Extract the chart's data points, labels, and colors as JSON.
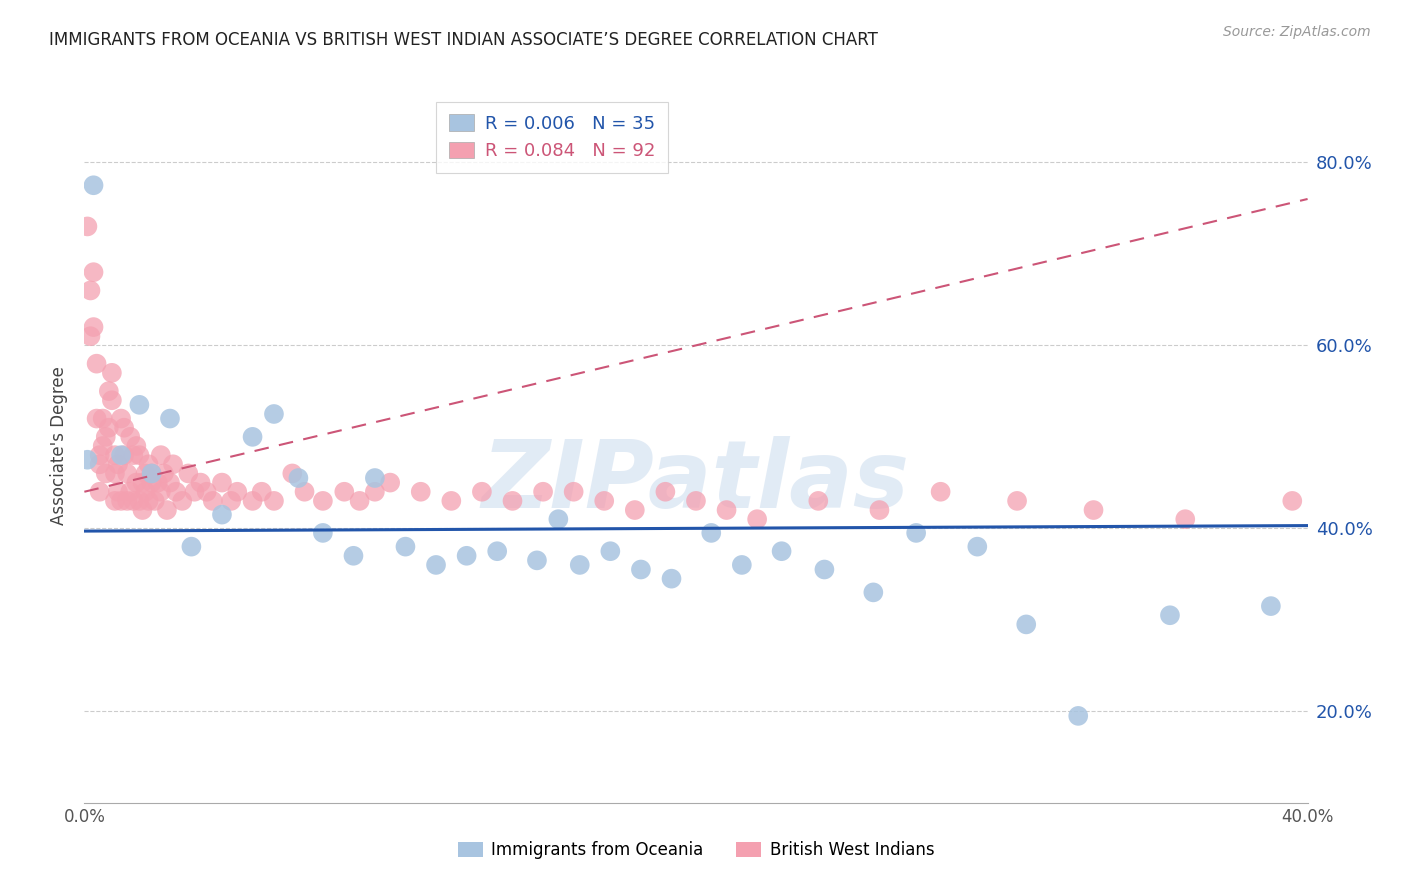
{
  "title": "IMMIGRANTS FROM OCEANIA VS BRITISH WEST INDIAN ASSOCIATE’S DEGREE CORRELATION CHART",
  "source": "Source: ZipAtlas.com",
  "ylabel": "Associate's Degree",
  "xlim": [
    0.0,
    0.4
  ],
  "ylim": [
    0.1,
    0.88
  ],
  "ytick_labels": [
    "20.0%",
    "40.0%",
    "60.0%",
    "80.0%"
  ],
  "ytick_vals": [
    0.2,
    0.4,
    0.6,
    0.8
  ],
  "xtick_labels": [
    "0.0%",
    "40.0%"
  ],
  "xtick_vals": [
    0.0,
    0.4
  ],
  "blue_color": "#a8c4e0",
  "blue_line_color": "#2255aa",
  "pink_color": "#f4a0b0",
  "pink_line_color": "#cc5577",
  "R_blue": 0.006,
  "N_blue": 35,
  "R_pink": 0.084,
  "N_pink": 92,
  "legend_label_blue": "Immigrants from Oceania",
  "legend_label_pink": "British West Indians",
  "watermark": "ZIPatlas",
  "blue_scatter_x": [
    0.001,
    0.003,
    0.012,
    0.018,
    0.022,
    0.028,
    0.035,
    0.045,
    0.055,
    0.062,
    0.07,
    0.078,
    0.088,
    0.095,
    0.105,
    0.115,
    0.125,
    0.135,
    0.148,
    0.155,
    0.162,
    0.172,
    0.182,
    0.192,
    0.205,
    0.215,
    0.228,
    0.242,
    0.258,
    0.272,
    0.292,
    0.308,
    0.325,
    0.355,
    0.388
  ],
  "blue_scatter_y": [
    0.475,
    0.775,
    0.48,
    0.535,
    0.46,
    0.52,
    0.38,
    0.415,
    0.5,
    0.525,
    0.455,
    0.395,
    0.37,
    0.455,
    0.38,
    0.36,
    0.37,
    0.375,
    0.365,
    0.41,
    0.36,
    0.375,
    0.355,
    0.345,
    0.395,
    0.36,
    0.375,
    0.355,
    0.33,
    0.395,
    0.38,
    0.295,
    0.195,
    0.305,
    0.315
  ],
  "pink_scatter_x": [
    0.001,
    0.002,
    0.002,
    0.003,
    0.003,
    0.004,
    0.004,
    0.005,
    0.005,
    0.005,
    0.006,
    0.006,
    0.007,
    0.007,
    0.008,
    0.008,
    0.009,
    0.009,
    0.01,
    0.01,
    0.01,
    0.011,
    0.011,
    0.012,
    0.012,
    0.013,
    0.013,
    0.014,
    0.014,
    0.015,
    0.015,
    0.016,
    0.016,
    0.017,
    0.017,
    0.018,
    0.018,
    0.019,
    0.019,
    0.02,
    0.02,
    0.021,
    0.021,
    0.022,
    0.022,
    0.023,
    0.024,
    0.025,
    0.025,
    0.026,
    0.027,
    0.028,
    0.029,
    0.03,
    0.032,
    0.034,
    0.036,
    0.038,
    0.04,
    0.042,
    0.045,
    0.048,
    0.05,
    0.055,
    0.058,
    0.062,
    0.068,
    0.072,
    0.078,
    0.085,
    0.09,
    0.095,
    0.1,
    0.11,
    0.12,
    0.13,
    0.14,
    0.15,
    0.16,
    0.17,
    0.18,
    0.19,
    0.2,
    0.21,
    0.22,
    0.24,
    0.26,
    0.28,
    0.305,
    0.33,
    0.36,
    0.395
  ],
  "pink_scatter_y": [
    0.73,
    0.66,
    0.61,
    0.68,
    0.62,
    0.58,
    0.52,
    0.48,
    0.44,
    0.47,
    0.49,
    0.52,
    0.46,
    0.5,
    0.55,
    0.51,
    0.57,
    0.54,
    0.48,
    0.43,
    0.46,
    0.47,
    0.44,
    0.52,
    0.43,
    0.51,
    0.48,
    0.46,
    0.43,
    0.5,
    0.44,
    0.48,
    0.43,
    0.45,
    0.49,
    0.48,
    0.43,
    0.45,
    0.42,
    0.46,
    0.44,
    0.47,
    0.43,
    0.45,
    0.46,
    0.43,
    0.45,
    0.44,
    0.48,
    0.46,
    0.42,
    0.45,
    0.47,
    0.44,
    0.43,
    0.46,
    0.44,
    0.45,
    0.44,
    0.43,
    0.45,
    0.43,
    0.44,
    0.43,
    0.44,
    0.43,
    0.46,
    0.44,
    0.43,
    0.44,
    0.43,
    0.44,
    0.45,
    0.44,
    0.43,
    0.44,
    0.43,
    0.44,
    0.44,
    0.43,
    0.42,
    0.44,
    0.43,
    0.42,
    0.41,
    0.43,
    0.42,
    0.44,
    0.43,
    0.42,
    0.41,
    0.43
  ],
  "blue_line_y0": 0.397,
  "blue_line_y1": 0.403,
  "pink_line_y0": 0.44,
  "pink_line_y1": 0.76
}
